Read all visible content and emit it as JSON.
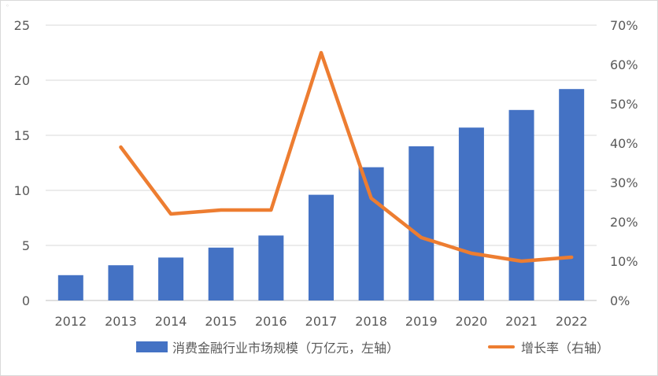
{
  "corner_mark": "◦",
  "chart_data": {
    "type": "bar",
    "categories": [
      "2012",
      "2013",
      "2014",
      "2015",
      "2016",
      "2017",
      "2018",
      "2019",
      "2020",
      "2021",
      "2022"
    ],
    "series": [
      {
        "name": "消费金融行业市场规模（万亿元，左轴）",
        "type": "bar",
        "axis": "left",
        "color": "#4472c4",
        "values": [
          2.3,
          3.2,
          3.9,
          4.8,
          5.9,
          9.6,
          12.1,
          14.0,
          15.7,
          17.3,
          19.2
        ]
      },
      {
        "name": "增长率（右轴）",
        "type": "line",
        "axis": "right",
        "color": "#ed7d31",
        "values": [
          null,
          39.0,
          22.0,
          23.0,
          23.0,
          63.0,
          26.0,
          16.0,
          12.0,
          10.0,
          11.0
        ]
      }
    ],
    "left_axis": {
      "ylim": [
        0,
        25
      ],
      "ticks": [
        "0",
        "5",
        "10",
        "15",
        "20",
        "25"
      ]
    },
    "right_axis": {
      "ylim": [
        0,
        70
      ],
      "ticks": [
        "0%",
        "10%",
        "20%",
        "30%",
        "40%",
        "50%",
        "60%",
        "70%"
      ]
    },
    "grid": true,
    "legend_position": "bottom"
  }
}
